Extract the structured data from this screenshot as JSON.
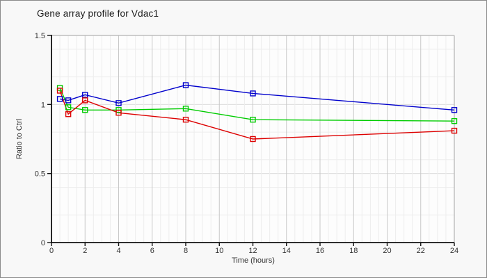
{
  "window": {
    "background": "#f8f8f8",
    "border_color": "#8a8a8a",
    "plot_background": "#fdfdfd"
  },
  "chart_data": {
    "type": "line",
    "title": "Gene array profile for Vdac1",
    "xlabel": "Time (hours)",
    "ylabel": "Ratio to Ctrl",
    "xlim": [
      0,
      24
    ],
    "ylim": [
      0,
      1.5
    ],
    "x_tick_step": 2,
    "x_ticks": [
      0,
      2,
      4,
      6,
      8,
      10,
      12,
      14,
      16,
      18,
      20,
      22,
      24
    ],
    "y_ticks": [
      0,
      0.5,
      1,
      1.5
    ],
    "y_tick_labels": [
      "0",
      "0.5",
      "1",
      "1.5"
    ],
    "grid": {
      "vertical_minor_step_hours": 0.5,
      "vertical_major_step_hours": 2,
      "horizontal_minor_step": 0.2,
      "legend": "none"
    },
    "marker": "open-square",
    "x": [
      0.5,
      1,
      2,
      4,
      8,
      12,
      24
    ],
    "series": [
      {
        "name": "series-blue",
        "color": "#0000cc",
        "values": [
          1.04,
          1.03,
          1.07,
          1.01,
          1.14,
          1.08,
          0.96
        ]
      },
      {
        "name": "series-green",
        "color": "#00cc00",
        "values": [
          1.12,
          0.98,
          0.96,
          0.96,
          0.97,
          0.89,
          0.88
        ]
      },
      {
        "name": "series-red",
        "color": "#dd0000",
        "values": [
          1.1,
          0.93,
          1.03,
          0.94,
          0.89,
          0.75,
          0.81
        ]
      }
    ],
    "colors": {
      "axis": "#111111",
      "tick_text": "#333333",
      "grid_minor": "#ededed",
      "grid_major_vertical": "#c8c8c8",
      "grid_major_horizontal": "#dcdcdc",
      "plot_border": "#b3b3b3"
    }
  }
}
